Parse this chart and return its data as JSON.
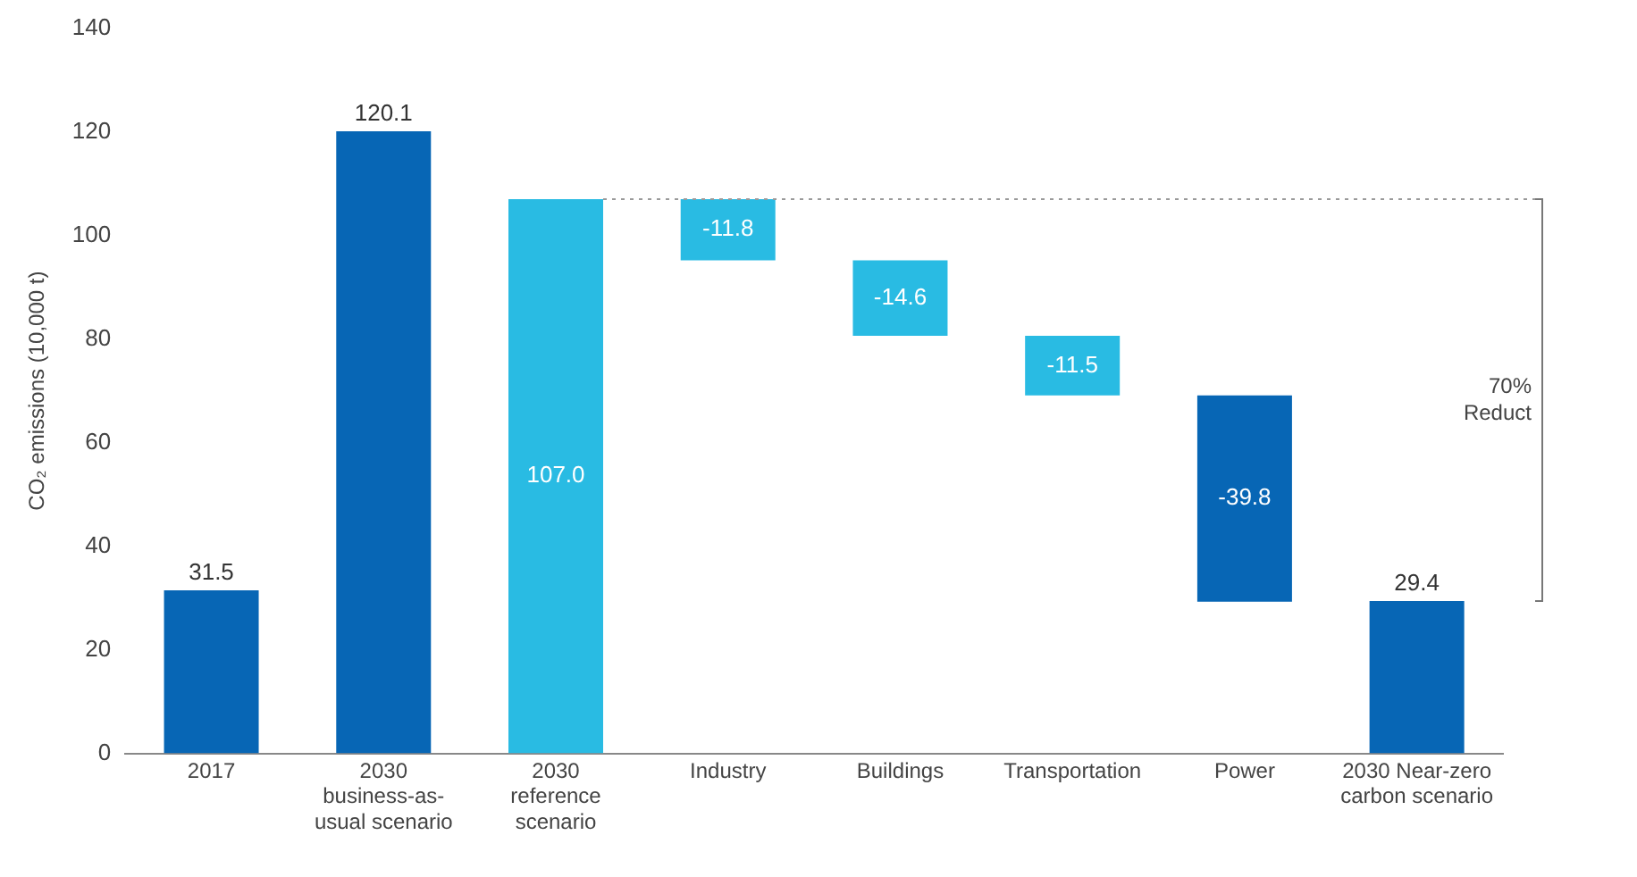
{
  "chart_data": {
    "type": "bar",
    "ylabel": "CO₂ emissions (10,000 t)",
    "categories": [
      "2017",
      "2030\nbusiness-as-\nusual scenario",
      "2030\nreference\nscenario",
      "Industry",
      "Buildings",
      "Transportation",
      "Power",
      "2030 Near-zero\ncarbon scenario"
    ],
    "values": [
      31.5,
      120.1,
      107.0,
      -11.8,
      -14.6,
      -11.5,
      -39.8,
      29.4
    ],
    "base": [
      0,
      0,
      0,
      107.0,
      95.2,
      80.6,
      69.1,
      0
    ],
    "colors": [
      "#0766b5",
      "#0766b5",
      "#29bbe3",
      "#29bbe3",
      "#29bbe3",
      "#29bbe3",
      "#0766b5",
      "#0766b5"
    ],
    "value_labels": [
      "31.5",
      "120.1",
      "107.0",
      "-11.8",
      "-14.6",
      "-11.5",
      "-39.8",
      "29.4"
    ],
    "ylim": [
      0,
      140
    ],
    "yticks": [
      0,
      20,
      40,
      60,
      80,
      100,
      120,
      140
    ],
    "grid": false,
    "legend": false,
    "ref_lines": [
      {
        "axis": "y",
        "value": 107.0,
        "line_style": "dotted",
        "color": "#9a9a9a"
      }
    ],
    "annotations": [
      "70% Reduct"
    ]
  }
}
